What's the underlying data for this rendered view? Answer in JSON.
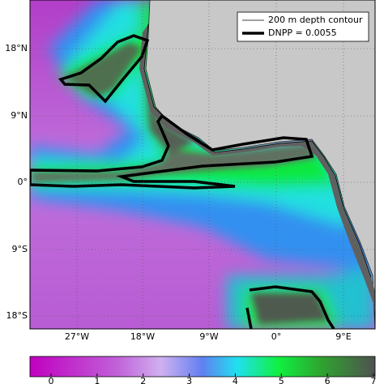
{
  "map": {
    "legend": [
      "200 m depth contour",
      "DNPP = 0.0055"
    ],
    "lat_labels": [
      "18°N",
      "9°N",
      "0°",
      "9°S",
      "18°S"
    ],
    "lon_labels": [
      "27°W",
      "18°W",
      "9°W",
      "0°",
      "9°E"
    ],
    "colorbar_ticks": [
      0,
      1,
      2,
      3,
      4,
      5,
      6,
      7
    ]
  }
}
